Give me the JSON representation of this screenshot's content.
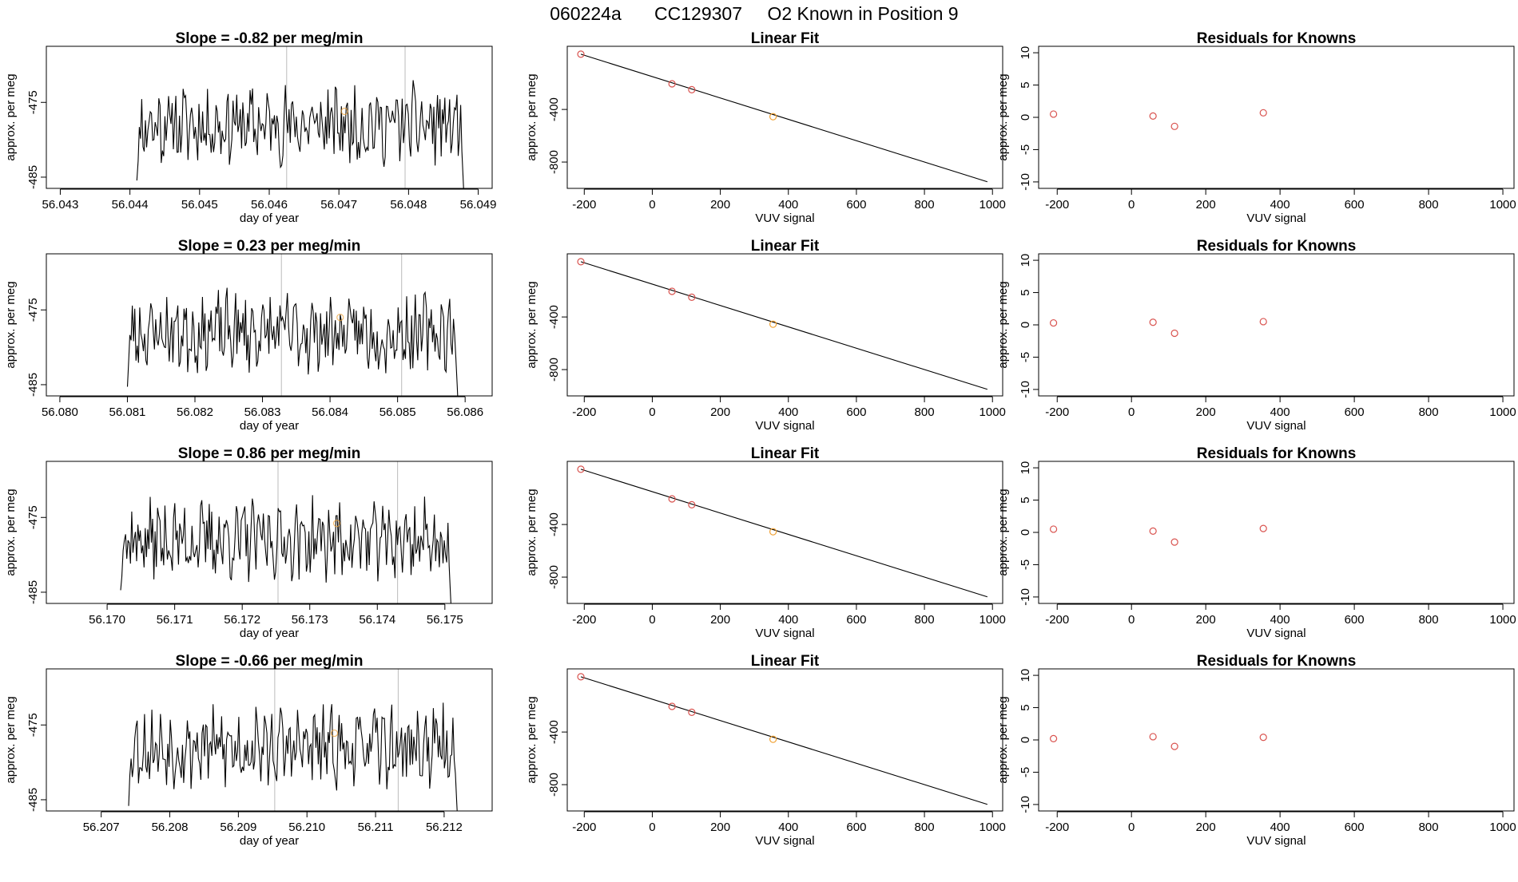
{
  "figure_title": {
    "run_id": "060224a",
    "tank_id": "CC129307",
    "position_label": "O2 Known in Position  9"
  },
  "colors": {
    "line": "#000000",
    "known_point": "#d9534f",
    "sample_point": "#f0a030",
    "frame": "#000000",
    "guide_line": "#bbbbbb"
  },
  "chart_data": [
    {
      "type": "line",
      "panel": "timeseries",
      "title": "Slope =  -0.82  per meg/min",
      "xlabel": "day of year",
      "ylabel": "approx. per meg",
      "xlim": [
        56.0428,
        56.0492
      ],
      "ylim": [
        -486.5,
        -467.5
      ],
      "xticks": [
        56.043,
        56.044,
        56.045,
        56.046,
        56.047,
        56.048,
        56.049
      ],
      "xtick_labels": [
        "56.043",
        "56.044",
        "56.045",
        "56.046",
        "56.047",
        "56.048",
        "56.049"
      ],
      "yticks": [
        -475,
        -485
      ],
      "ytick_labels": [
        "-475",
        "-485"
      ],
      "series_start": 56.0441,
      "series_end": 56.0488,
      "series_points": 270,
      "seed": 11,
      "guide_lines": [
        56.04625,
        56.04795
      ],
      "sample_marker": {
        "x": 56.04708,
        "y": -476.2
      }
    },
    {
      "type": "scatter",
      "panel": "linear_fit",
      "title": "Linear Fit",
      "xlabel": "VUV signal",
      "ylabel": "approx. per meg",
      "xlim": [
        -250,
        1030
      ],
      "ylim": [
        -1000,
        80
      ],
      "xticks": [
        -200,
        0,
        200,
        400,
        600,
        800,
        1000
      ],
      "xtick_labels": [
        "-200",
        "0",
        "200",
        "400",
        "600",
        "800",
        "1000"
      ],
      "yticks": [
        -400,
        -800
      ],
      "ytick_labels": [
        "-400",
        "-800"
      ],
      "fit_line": {
        "x0": -210,
        "y0": 20,
        "x1": 985,
        "y1": -950
      },
      "known_points": [
        {
          "x": -210,
          "y": 20
        },
        {
          "x": 58,
          "y": -205
        },
        {
          "x": 116,
          "y": -250
        }
      ],
      "sample_points": [
        {
          "x": 355,
          "y": -455
        }
      ]
    },
    {
      "type": "scatter",
      "panel": "residuals",
      "title": "Residuals for Knowns",
      "xlabel": "VUV signal",
      "ylabel": "approx. per meg",
      "xlim": [
        -250,
        1030
      ],
      "ylim": [
        -11,
        11
      ],
      "xticks": [
        -200,
        0,
        200,
        400,
        600,
        800,
        1000
      ],
      "xtick_labels": [
        "-200",
        "0",
        "200",
        "400",
        "600",
        "800",
        "1000"
      ],
      "yticks": [
        10,
        5,
        0,
        -5,
        -10
      ],
      "ytick_labels": [
        "10",
        "5",
        "0",
        "-5",
        "-10"
      ],
      "points": [
        {
          "x": -210,
          "y": 0.5
        },
        {
          "x": 58,
          "y": 0.2
        },
        {
          "x": 116,
          "y": -1.4
        },
        {
          "x": 355,
          "y": 0.7
        }
      ]
    },
    {
      "type": "line",
      "panel": "timeseries",
      "title": "Slope =  0.23  per meg/min",
      "xlabel": "day of year",
      "ylabel": "approx. per meg",
      "xlim": [
        56.0798,
        56.0864
      ],
      "ylim": [
        -486.5,
        -467.5
      ],
      "xticks": [
        56.08,
        56.081,
        56.082,
        56.083,
        56.084,
        56.085,
        56.086
      ],
      "xtick_labels": [
        "56.080",
        "56.081",
        "56.082",
        "56.083",
        "56.084",
        "56.085",
        "56.086"
      ],
      "yticks": [
        -475,
        -485
      ],
      "ytick_labels": [
        "-475",
        "-485"
      ],
      "series_start": 56.081,
      "series_end": 56.0859,
      "series_points": 270,
      "seed": 23,
      "guide_lines": [
        56.08328,
        56.08506
      ],
      "sample_marker": {
        "x": 56.08415,
        "y": -476.0
      }
    },
    {
      "type": "scatter",
      "panel": "linear_fit",
      "title": "Linear Fit",
      "xlabel": "VUV signal",
      "ylabel": "approx. per meg",
      "xlim": [
        -250,
        1030
      ],
      "ylim": [
        -1000,
        80
      ],
      "xticks": [
        -200,
        0,
        200,
        400,
        600,
        800,
        1000
      ],
      "xtick_labels": [
        "-200",
        "0",
        "200",
        "400",
        "600",
        "800",
        "1000"
      ],
      "yticks": [
        -400,
        -800
      ],
      "ytick_labels": [
        "-400",
        "-800"
      ],
      "fit_line": {
        "x0": -210,
        "y0": 20,
        "x1": 985,
        "y1": -950
      },
      "known_points": [
        {
          "x": -210,
          "y": 20
        },
        {
          "x": 58,
          "y": -205
        },
        {
          "x": 116,
          "y": -250
        }
      ],
      "sample_points": [
        {
          "x": 355,
          "y": -455
        }
      ]
    },
    {
      "type": "scatter",
      "panel": "residuals",
      "title": "Residuals for Knowns",
      "xlabel": "VUV signal",
      "ylabel": "approx. per meg",
      "xlim": [
        -250,
        1030
      ],
      "ylim": [
        -11,
        11
      ],
      "xticks": [
        -200,
        0,
        200,
        400,
        600,
        800,
        1000
      ],
      "xtick_labels": [
        "-200",
        "0",
        "200",
        "400",
        "600",
        "800",
        "1000"
      ],
      "yticks": [
        10,
        5,
        0,
        -5,
        -10
      ],
      "ytick_labels": [
        "10",
        "5",
        "0",
        "-5",
        "-10"
      ],
      "points": [
        {
          "x": -210,
          "y": 0.3
        },
        {
          "x": 58,
          "y": 0.4
        },
        {
          "x": 116,
          "y": -1.3
        },
        {
          "x": 355,
          "y": 0.5
        }
      ]
    },
    {
      "type": "line",
      "panel": "timeseries",
      "title": "Slope =  0.86  per meg/min",
      "xlabel": "day of year",
      "ylabel": "approx. per meg",
      "xlim": [
        56.1691,
        56.1757
      ],
      "ylim": [
        -486.5,
        -467.5
      ],
      "xticks": [
        56.17,
        56.171,
        56.172,
        56.173,
        56.174,
        56.175
      ],
      "xtick_labels": [
        "56.170",
        "56.171",
        "56.172",
        "56.173",
        "56.174",
        "56.175"
      ],
      "yticks": [
        -475,
        -485
      ],
      "ytick_labels": [
        "-475",
        "-485"
      ],
      "series_start": 56.1702,
      "series_end": 56.1751,
      "series_points": 270,
      "seed": 37,
      "guide_lines": [
        56.17253,
        56.1743
      ],
      "sample_marker": {
        "x": 56.1734,
        "y": -475.8
      }
    },
    {
      "type": "scatter",
      "panel": "linear_fit",
      "title": "Linear Fit",
      "xlabel": "VUV signal",
      "ylabel": "approx. per meg",
      "xlim": [
        -250,
        1030
      ],
      "ylim": [
        -1000,
        80
      ],
      "xticks": [
        -200,
        0,
        200,
        400,
        600,
        800,
        1000
      ],
      "xtick_labels": [
        "-200",
        "0",
        "200",
        "400",
        "600",
        "800",
        "1000"
      ],
      "yticks": [
        -400,
        -800
      ],
      "ytick_labels": [
        "-400",
        "-800"
      ],
      "fit_line": {
        "x0": -210,
        "y0": 20,
        "x1": 985,
        "y1": -950
      },
      "known_points": [
        {
          "x": -210,
          "y": 20
        },
        {
          "x": 58,
          "y": -205
        },
        {
          "x": 116,
          "y": -250
        }
      ],
      "sample_points": [
        {
          "x": 355,
          "y": -455
        }
      ]
    },
    {
      "type": "scatter",
      "panel": "residuals",
      "title": "Residuals for Knowns",
      "xlabel": "VUV signal",
      "ylabel": "approx. per meg",
      "xlim": [
        -250,
        1030
      ],
      "ylim": [
        -11,
        11
      ],
      "xticks": [
        -200,
        0,
        200,
        400,
        600,
        800,
        1000
      ],
      "xtick_labels": [
        "-200",
        "0",
        "200",
        "400",
        "600",
        "800",
        "1000"
      ],
      "yticks": [
        10,
        5,
        0,
        -5,
        -10
      ],
      "ytick_labels": [
        "10",
        "5",
        "0",
        "-5",
        "-10"
      ],
      "points": [
        {
          "x": -210,
          "y": 0.5
        },
        {
          "x": 58,
          "y": 0.2
        },
        {
          "x": 116,
          "y": -1.5
        },
        {
          "x": 355,
          "y": 0.6
        }
      ]
    },
    {
      "type": "line",
      "panel": "timeseries",
      "title": "Slope =  -0.66  per meg/min",
      "xlabel": "day of year",
      "ylabel": "approx. per meg",
      "xlim": [
        56.2062,
        56.2127
      ],
      "ylim": [
        -486.5,
        -467.5
      ],
      "xticks": [
        56.207,
        56.208,
        56.209,
        56.21,
        56.211,
        56.212
      ],
      "xtick_labels": [
        "56.207",
        "56.208",
        "56.209",
        "56.210",
        "56.211",
        "56.212"
      ],
      "yticks": [
        -475,
        -485
      ],
      "ytick_labels": [
        "-475",
        "-485"
      ],
      "series_start": 56.2074,
      "series_end": 56.2122,
      "series_points": 270,
      "seed": 53,
      "guide_lines": [
        56.20953,
        56.21133
      ],
      "sample_marker": {
        "x": 56.2104,
        "y": -476.1
      }
    },
    {
      "type": "scatter",
      "panel": "linear_fit",
      "title": "Linear Fit",
      "xlabel": "VUV signal",
      "ylabel": "approx. per meg",
      "xlim": [
        -250,
        1030
      ],
      "ylim": [
        -1000,
        80
      ],
      "xticks": [
        -200,
        0,
        200,
        400,
        600,
        800,
        1000
      ],
      "xtick_labels": [
        "-200",
        "0",
        "200",
        "400",
        "600",
        "800",
        "1000"
      ],
      "yticks": [
        -400,
        -800
      ],
      "ytick_labels": [
        "-400",
        "-800"
      ],
      "fit_line": {
        "x0": -210,
        "y0": 20,
        "x1": 985,
        "y1": -950
      },
      "known_points": [
        {
          "x": -210,
          "y": 20
        },
        {
          "x": 58,
          "y": -205
        },
        {
          "x": 116,
          "y": -250
        }
      ],
      "sample_points": [
        {
          "x": 355,
          "y": -455
        }
      ]
    },
    {
      "type": "scatter",
      "panel": "residuals",
      "title": "Residuals for Knowns",
      "xlabel": "VUV signal",
      "ylabel": "approx. per meg",
      "xlim": [
        -250,
        1030
      ],
      "ylim": [
        -11,
        11
      ],
      "xticks": [
        -200,
        0,
        200,
        400,
        600,
        800,
        1000
      ],
      "xtick_labels": [
        "-200",
        "0",
        "200",
        "400",
        "600",
        "800",
        "1000"
      ],
      "yticks": [
        10,
        5,
        0,
        -5,
        -10
      ],
      "ytick_labels": [
        "10",
        "5",
        "0",
        "-5",
        "-10"
      ],
      "points": [
        {
          "x": -210,
          "y": 0.2
        },
        {
          "x": 58,
          "y": 0.5
        },
        {
          "x": 116,
          "y": -1.0
        },
        {
          "x": 355,
          "y": 0.4
        }
      ]
    }
  ]
}
